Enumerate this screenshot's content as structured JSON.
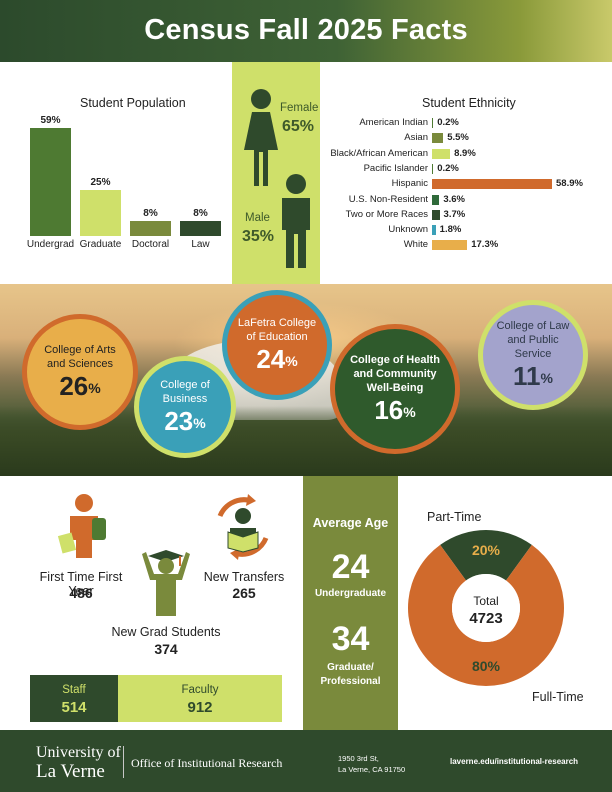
{
  "title": "Census Fall 2025 Facts",
  "student_population": {
    "title": "Student Population",
    "chart_data": {
      "type": "bar",
      "categories": [
        "Undergrad",
        "Graduate",
        "Doctoral",
        "Law"
      ],
      "values": [
        59,
        25,
        8,
        8
      ],
      "value_labels": [
        "59%",
        "25%",
        "8%",
        "8%"
      ],
      "colors": [
        "#4e7a32",
        "#cfe06a",
        "#7a8a3c",
        "#2f4a2c"
      ],
      "ylim": [
        0,
        59
      ]
    }
  },
  "gender": {
    "female_label": "Female",
    "female_pct": "65%",
    "male_label": "Male",
    "male_pct": "35%",
    "female_icon": "female-person-icon",
    "male_icon": "male-person-icon",
    "icon_color": "#2f4a2c"
  },
  "ethnicity": {
    "title": "Student Ethnicity",
    "chart_data": {
      "type": "bar",
      "orientation": "horizontal",
      "categories": [
        "American Indian",
        "Asian",
        "Black/African American",
        "Pacific Islander",
        "Hispanic",
        "U.S. Non-Resident",
        "Two or More Races",
        "Unknown",
        "White"
      ],
      "values": [
        0.2,
        5.5,
        8.9,
        0.2,
        58.9,
        3.6,
        3.7,
        1.8,
        17.3
      ],
      "value_labels": [
        "0.2%",
        "5.5%",
        "8.9%",
        "0.2%",
        "58.9%",
        "3.6%",
        "3.7%",
        "1.8%",
        "17.3%"
      ],
      "colors": [
        "#4e7a32",
        "#7a8a3c",
        "#cfe06a",
        "#4e7a32",
        "#d06a2c",
        "#2f6a3a",
        "#2f4a2c",
        "#3aa0b8",
        "#e8ae4a"
      ],
      "xlim": [
        0,
        58.9
      ]
    }
  },
  "colleges": [
    {
      "name": "College of Arts and Sciences",
      "pct": "26",
      "color": "#e8ae4a",
      "border": "#d06a2c"
    },
    {
      "name": "College of Business",
      "pct": "23",
      "color": "#3aa0b8",
      "border": "#cfe06a"
    },
    {
      "name": "LaFetra College of Education",
      "pct": "24",
      "color": "#d06a2c",
      "border": "#3aa0b8"
    },
    {
      "name": "College of Health and Community Well-Being",
      "pct": "16",
      "color": "#2f5a2c",
      "border": "#d06a2c"
    },
    {
      "name": "College of Law and Public Service",
      "pct": "11",
      "color": "#a3a3cc",
      "border": "#cfe06a"
    }
  ],
  "percent_symbol": "%",
  "students": {
    "first_time_label": "First Time First Year",
    "first_time_value": "486",
    "transfer_label": "New Transfers",
    "transfer_value": "265",
    "grad_label": "New Grad Students",
    "grad_value": "374"
  },
  "staff": {
    "label": "Staff",
    "value": "514"
  },
  "faculty": {
    "label": "Faculty",
    "value": "912"
  },
  "age": {
    "title": "Average Age",
    "undergrad_value": "24",
    "undergrad_label": "Undergraduate",
    "grad_value": "34",
    "grad_label_1": "Graduate/",
    "grad_label_2": "Professional"
  },
  "enrollment": {
    "part_time_label": "Part-Time",
    "full_time_label": "Full-Time",
    "total_label": "Total",
    "total_value": "4723",
    "chart_data": {
      "type": "pie",
      "categories": [
        "Part-Time",
        "Full-Time"
      ],
      "values": [
        20,
        80
      ],
      "value_labels": [
        "20%",
        "80%"
      ],
      "colors": [
        "#2f4a2c",
        "#d06a2c"
      ]
    }
  },
  "footer": {
    "logo_line1": "University of",
    "logo_line2": "La Verne",
    "office": "Office of Institutional Research",
    "address_1": "1950 3rd St,",
    "address_2": "La Verne, CA 91750",
    "url": "laverne.edu/institutional-research"
  }
}
